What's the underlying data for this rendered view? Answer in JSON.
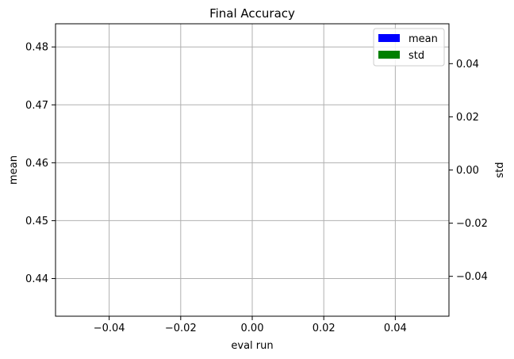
{
  "chart_data": {
    "type": "bar",
    "title": "Final Accuracy",
    "xlabel": "eval run",
    "ylabel": "mean",
    "y2label": "std",
    "xlim": [
      -0.055,
      0.055
    ],
    "ylim": [
      0.4335,
      0.484
    ],
    "y2lim": [
      -0.055,
      0.055
    ],
    "x_ticks": [
      -0.04,
      -0.02,
      0.0,
      0.02,
      0.04
    ],
    "x_tick_labels": [
      "−0.04",
      "−0.02",
      "0.00",
      "0.02",
      "0.04"
    ],
    "y_ticks": [
      0.44,
      0.45,
      0.46,
      0.47,
      0.48
    ],
    "y_tick_labels": [
      "0.44",
      "0.45",
      "0.46",
      "0.47",
      "0.48"
    ],
    "y2_ticks": [
      -0.04,
      -0.02,
      0.0,
      0.02,
      0.04
    ],
    "y2_tick_labels": [
      "−0.04",
      "−0.02",
      "0.00",
      "0.02",
      "0.04"
    ],
    "grid": true,
    "legend_position": "top-right",
    "series": [
      {
        "name": "mean",
        "axis": "left",
        "color": "#0000ff",
        "values": []
      },
      {
        "name": "std",
        "axis": "right",
        "color": "#008000",
        "values": []
      }
    ]
  }
}
